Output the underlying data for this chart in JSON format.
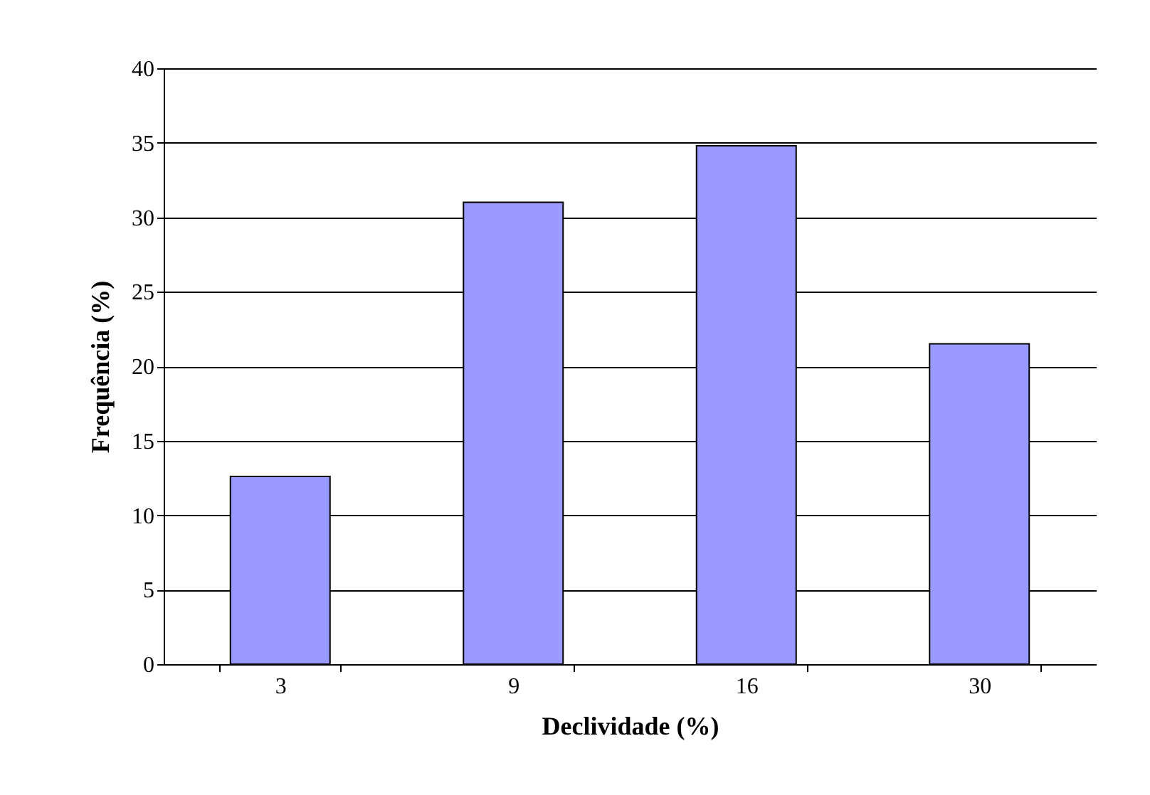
{
  "chart_data": {
    "type": "bar",
    "xlabel": "Declividade (%)",
    "ylabel": "Frequência (%)",
    "categories": [
      "3",
      "9",
      "16",
      "30"
    ],
    "values": [
      12.6,
      31.0,
      34.8,
      21.5
    ],
    "color": "#9999ff",
    "ylim": [
      0,
      40
    ],
    "yticks": [
      0,
      5,
      10,
      15,
      20,
      25,
      30,
      35,
      40
    ],
    "grid": "y"
  }
}
